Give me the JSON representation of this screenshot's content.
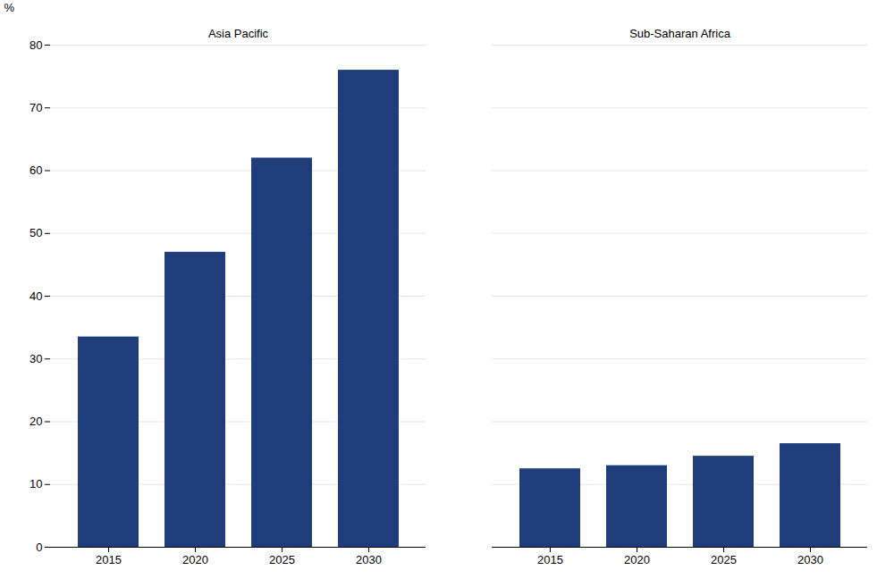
{
  "chart_data": {
    "type": "bar",
    "ylabel": "%",
    "groups": [
      {
        "label": "Asia Pacific",
        "categories": [
          "2015",
          "2020",
          "2025",
          "2030"
        ],
        "values": [
          33.5,
          47.0,
          62.0,
          76.0
        ]
      },
      {
        "label": "Sub-Saharan Africa",
        "categories": [
          "2015",
          "2020",
          "2025",
          "2030"
        ],
        "values": [
          12.5,
          13.0,
          14.5,
          16.5
        ]
      }
    ],
    "color": "#1F3D7A",
    "ylim": [
      0,
      80
    ],
    "yticks": [
      0,
      10,
      20,
      30,
      40,
      50,
      60,
      70,
      80
    ],
    "grid": true
  }
}
